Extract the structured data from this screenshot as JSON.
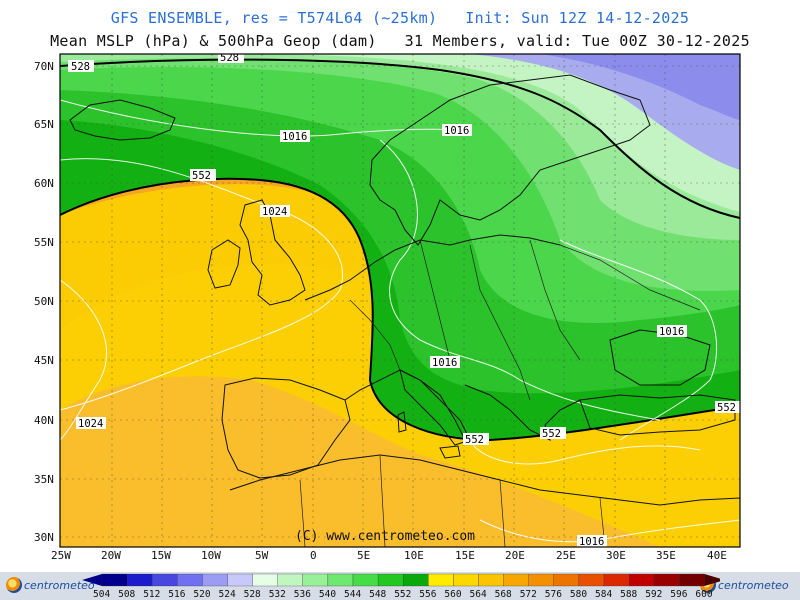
{
  "header": {
    "line1": "GFS ENSEMBLE, res = T574L64 (~25km)   Init: Sun 12Z 14-12-2025",
    "line2": "Mean MSLP (hPa) & 500hPa Geop (dam)   31 Members, valid: Tue 00Z 30-12-2025"
  },
  "axes": {
    "lat_labels": [
      "70N",
      "65N",
      "60N",
      "55N",
      "50N",
      "45N",
      "40N",
      "35N",
      "30N"
    ],
    "lon_labels": [
      "25W",
      "20W",
      "15W",
      "10W",
      "5W",
      "0",
      "5E",
      "10E",
      "15E",
      "20E",
      "25E",
      "30E",
      "35E",
      "40E"
    ]
  },
  "contour_labels": {
    "geop": [
      "528",
      "528",
      "552",
      "552",
      "552",
      "552"
    ],
    "mslp": [
      "1016",
      "1016",
      "1024",
      "1016",
      "1016",
      "1024",
      "1016"
    ]
  },
  "watermark": "(C) www.centrometeo.com",
  "footer": {
    "logo_left": "centrometeo",
    "logo_right": "centrometeo"
  },
  "colorbar": {
    "values": [
      "504",
      "508",
      "512",
      "516",
      "520",
      "524",
      "528",
      "532",
      "536",
      "540",
      "544",
      "548",
      "552",
      "556",
      "560",
      "564",
      "568",
      "572",
      "576",
      "580",
      "584",
      "588",
      "592",
      "596",
      "600"
    ],
    "colors": [
      "#00008b",
      "#1c1ccd",
      "#4848e0",
      "#7070f0",
      "#9c9cf4",
      "#c8c8fa",
      "#e6fde6",
      "#c0f7c0",
      "#98f098",
      "#6fe86f",
      "#45dc45",
      "#22c722",
      "#0aa80a",
      "#ffeb00",
      "#fdd800",
      "#fbc400",
      "#f7a800",
      "#f39000",
      "#ee7400",
      "#e85000",
      "#dc2800",
      "#c00000",
      "#9a0000",
      "#720000",
      "#4a0000"
    ],
    "geop_bands": {
      "528": "#8c8cec",
      "532": "#b8f3b8",
      "536": "#98ec98",
      "540": "#6fe26f",
      "544": "#45d445",
      "548": "#1fbd1f",
      "552": "#0aa50a",
      "556": "#f5e62a",
      "560": "#fcd230",
      "564": "#f8bf1a"
    }
  },
  "map_colors": {
    "land_outline": "#111111",
    "contour_line": "#ffffff",
    "grid_line": "#555555",
    "border": "#000000"
  }
}
